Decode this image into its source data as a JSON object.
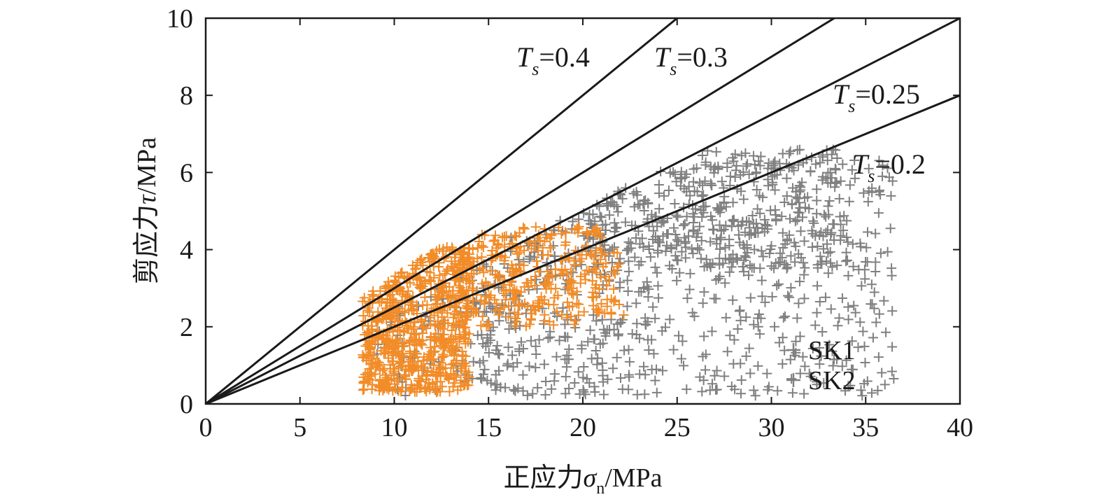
{
  "chart_data": {
    "type": "scatter",
    "xlabel": {
      "prefix": "正应力",
      "symbol": "σ",
      "sub": "n",
      "suffix": "/MPa"
    },
    "ylabel": {
      "prefix": "剪应力",
      "symbol": "τ",
      "suffix": "/MPa"
    },
    "xlim": [
      0,
      40
    ],
    "ylim": [
      0,
      10
    ],
    "xticks": [
      0,
      5,
      10,
      15,
      20,
      25,
      30,
      35,
      40
    ],
    "yticks": [
      0,
      2,
      4,
      6,
      8,
      10
    ],
    "grid": false,
    "legend_position": "bottom-right",
    "lines": [
      {
        "slope": 0.4,
        "label_var": "T",
        "label_sub": "s",
        "label_value": "=0.4"
      },
      {
        "slope": 0.3,
        "label_var": "T",
        "label_sub": "s",
        "label_value": "=0.3"
      },
      {
        "slope": 0.25,
        "label_var": "T",
        "label_sub": "s",
        "label_value": "=0.25"
      },
      {
        "slope": 0.2,
        "label_var": "T",
        "label_sub": "s",
        "label_value": "=0.2"
      }
    ],
    "series": [
      {
        "name": "SK1",
        "marker": "+",
        "color": "#808080",
        "clusters": [
          {
            "x": [
              9,
              36.5
            ],
            "y": [
              0.2,
              6.6
            ],
            "count": 600,
            "cap_slope": 0.235,
            "cap_offset": 0.2
          },
          {
            "x": [
              20,
              34
            ],
            "y": [
              3.5,
              6.6
            ],
            "count": 350,
            "cap_slope": 0.23,
            "cap_offset": 0.5
          },
          {
            "x": [
              14,
              24
            ],
            "y": [
              0.2,
              4.8
            ],
            "count": 150,
            "cap_slope": 0.25,
            "cap_offset": 0.3
          }
        ]
      },
      {
        "name": "SK2",
        "marker": "+",
        "color": "#f28c28",
        "clusters": [
          {
            "x": [
              8.3,
              14
            ],
            "y": [
              0.3,
              4.1
            ],
            "count": 700,
            "cap_slope": 0.33,
            "cap_offset": 0.0
          },
          {
            "x": [
              13,
              21
            ],
            "y": [
              2.0,
              4.6
            ],
            "count": 300,
            "cap_slope": 0.3,
            "cap_offset": 0.0
          },
          {
            "x": [
              20,
              22.2
            ],
            "y": [
              2.3,
              4.0
            ],
            "count": 40,
            "cap_slope": 0.2,
            "cap_offset": 0.0
          }
        ]
      }
    ]
  }
}
